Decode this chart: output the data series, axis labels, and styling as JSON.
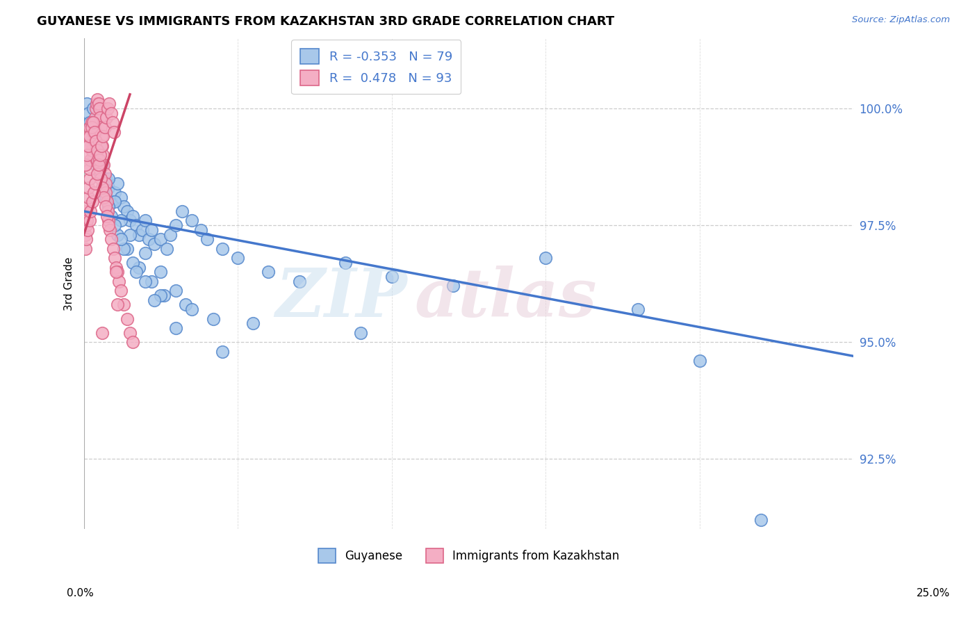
{
  "title": "GUYANESE VS IMMIGRANTS FROM KAZAKHSTAN 3RD GRADE CORRELATION CHART",
  "source": "Source: ZipAtlas.com",
  "ylabel": "3rd Grade",
  "ytick_values": [
    92.5,
    95.0,
    97.5,
    100.0
  ],
  "xmin": 0.0,
  "xmax": 25.0,
  "ymin": 91.0,
  "ymax": 101.5,
  "legend_label_blue": "Guyanese",
  "legend_label_pink": "Immigrants from Kazakhstan",
  "blue_color": "#a8c8ea",
  "pink_color": "#f4aec4",
  "blue_edge_color": "#5588cc",
  "pink_edge_color": "#dd6688",
  "blue_line_color": "#4477cc",
  "pink_line_color": "#cc4466",
  "blue_r": "R = -0.353",
  "blue_n": "N = 79",
  "pink_r": "R =  0.478",
  "pink_n": "N = 93",
  "blue_scatter_x": [
    0.1,
    0.15,
    0.2,
    0.3,
    0.4,
    0.5,
    0.6,
    0.7,
    0.8,
    0.9,
    1.0,
    1.1,
    1.2,
    1.3,
    1.4,
    1.5,
    1.6,
    1.7,
    1.8,
    1.9,
    2.0,
    2.1,
    2.2,
    2.3,
    2.5,
    2.7,
    2.8,
    3.0,
    3.2,
    3.5,
    3.8,
    4.0,
    4.5,
    5.0,
    6.0,
    7.0,
    8.5,
    10.0,
    12.0,
    15.0,
    18.0,
    22.0,
    0.5,
    0.8,
    1.0,
    1.2,
    1.5,
    2.0,
    2.5,
    3.0,
    0.3,
    0.6,
    0.9,
    1.1,
    1.4,
    1.8,
    2.2,
    2.6,
    3.3,
    4.2,
    0.4,
    0.7,
    1.0,
    1.3,
    1.6,
    2.0,
    2.5,
    3.5,
    5.5,
    9.0,
    0.2,
    0.5,
    0.8,
    1.2,
    1.7,
    2.3,
    3.0,
    4.5,
    20.0
  ],
  "blue_scatter_y": [
    100.1,
    99.9,
    99.7,
    100.0,
    99.5,
    99.2,
    98.8,
    98.5,
    98.3,
    98.0,
    98.2,
    98.4,
    98.1,
    97.9,
    97.8,
    97.6,
    97.7,
    97.5,
    97.3,
    97.4,
    97.6,
    97.2,
    97.4,
    97.1,
    97.2,
    97.0,
    97.3,
    97.5,
    97.8,
    97.6,
    97.4,
    97.2,
    97.0,
    96.8,
    96.5,
    96.3,
    96.7,
    96.4,
    96.2,
    96.8,
    95.7,
    91.2,
    98.7,
    98.5,
    98.0,
    97.6,
    97.3,
    96.9,
    96.5,
    96.1,
    99.0,
    98.3,
    97.7,
    97.3,
    97.0,
    96.6,
    96.3,
    96.0,
    95.8,
    95.5,
    98.8,
    98.1,
    97.5,
    97.0,
    96.7,
    96.3,
    96.0,
    95.7,
    95.4,
    95.2,
    99.3,
    98.6,
    97.9,
    97.2,
    96.5,
    95.9,
    95.3,
    94.8,
    94.6
  ],
  "pink_scatter_x": [
    0.05,
    0.07,
    0.08,
    0.1,
    0.12,
    0.14,
    0.15,
    0.18,
    0.2,
    0.22,
    0.25,
    0.28,
    0.3,
    0.32,
    0.35,
    0.38,
    0.4,
    0.42,
    0.45,
    0.48,
    0.5,
    0.52,
    0.55,
    0.58,
    0.6,
    0.62,
    0.65,
    0.68,
    0.7,
    0.72,
    0.75,
    0.78,
    0.8,
    0.85,
    0.9,
    0.95,
    1.0,
    1.05,
    1.1,
    1.15,
    1.2,
    1.3,
    1.4,
    1.5,
    1.6,
    0.1,
    0.15,
    0.2,
    0.25,
    0.3,
    0.35,
    0.4,
    0.45,
    0.5,
    0.55,
    0.6,
    0.65,
    0.7,
    0.75,
    0.8,
    0.05,
    0.1,
    0.15,
    0.2,
    0.25,
    0.3,
    0.35,
    0.4,
    0.45,
    0.5,
    0.05,
    0.08,
    0.12,
    0.18,
    0.22,
    0.28,
    0.33,
    0.38,
    0.43,
    0.48,
    0.53,
    0.58,
    0.63,
    0.68,
    0.73,
    0.78,
    0.83,
    0.88,
    0.93,
    0.98,
    1.05,
    1.1,
    0.6
  ],
  "pink_scatter_y": [
    97.3,
    97.5,
    97.8,
    97.6,
    97.9,
    98.1,
    98.3,
    98.5,
    98.7,
    98.9,
    99.1,
    99.3,
    99.5,
    99.2,
    99.6,
    99.8,
    100.0,
    100.1,
    100.2,
    100.1,
    100.0,
    99.8,
    99.6,
    99.4,
    99.2,
    99.0,
    98.8,
    98.6,
    98.4,
    98.2,
    98.0,
    97.8,
    97.6,
    97.4,
    97.2,
    97.0,
    96.8,
    96.6,
    96.5,
    96.3,
    96.1,
    95.8,
    95.5,
    95.2,
    95.0,
    99.2,
    99.4,
    99.6,
    99.7,
    99.5,
    99.3,
    99.1,
    98.9,
    98.7,
    98.5,
    98.3,
    98.1,
    97.9,
    97.7,
    97.5,
    98.8,
    99.0,
    99.2,
    99.4,
    99.6,
    99.7,
    99.5,
    99.3,
    99.1,
    98.9,
    97.0,
    97.2,
    97.4,
    97.6,
    97.8,
    98.0,
    98.2,
    98.4,
    98.6,
    98.8,
    99.0,
    99.2,
    99.4,
    99.6,
    99.8,
    100.0,
    100.1,
    99.9,
    99.7,
    99.5,
    96.5,
    95.8,
    95.2
  ]
}
